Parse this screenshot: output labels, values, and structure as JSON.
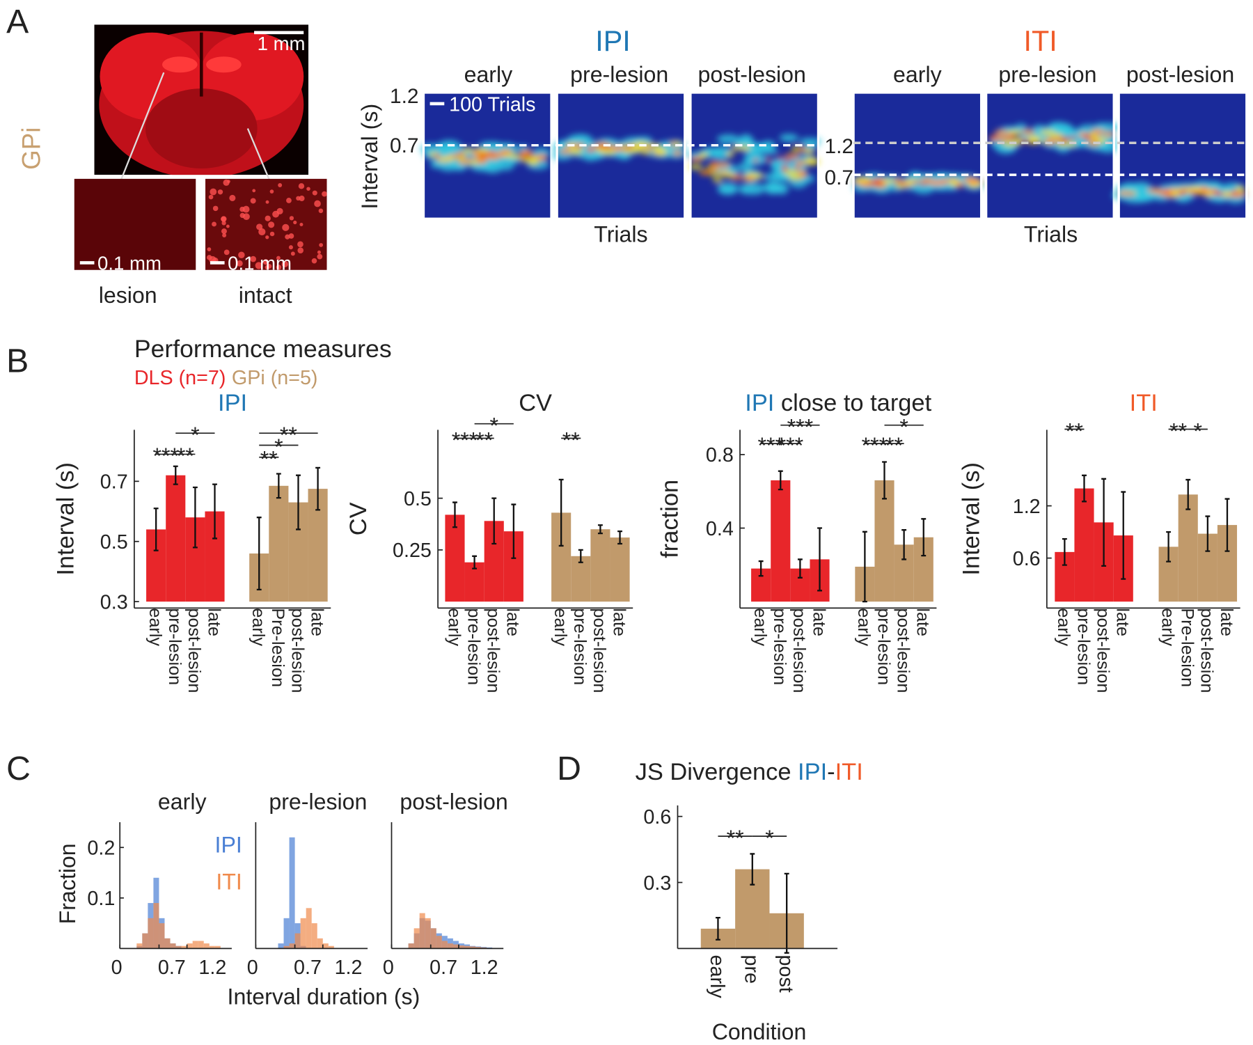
{
  "panel_labels": [
    "A",
    "B",
    "C",
    "D"
  ],
  "panel_a": {
    "region": "GPi",
    "scale_main": "1 mm",
    "scale_inset": [
      "0.1 mm",
      "0.1 mm"
    ],
    "insets": [
      "lesion",
      "intact"
    ],
    "heatmaps": [
      {
        "title": "IPI",
        "color": "#1f77b4",
        "conditions": [
          "early",
          "pre-lesion",
          "post-lesion"
        ],
        "ytick_labels": [
          "1.2",
          "0.7"
        ],
        "ylabel": "Interval (s)",
        "scale_bar": "100 Trials",
        "xlabel": "Trials"
      },
      {
        "title": "ITI",
        "color": "#f05a28",
        "conditions": [
          "early",
          "pre-lesion",
          "post-lesion"
        ],
        "ytick_labels": [
          "1.2",
          "0.7"
        ],
        "xlabel": "Trials"
      }
    ]
  },
  "panel_b": {
    "title": "Performance measures",
    "legend": [
      {
        "name": "DLS (n=7)",
        "color": "#e8262a"
      },
      {
        "name": "GPi (n=5)",
        "color": "#c19a6b"
      }
    ]
  },
  "panel_c": {
    "xlabel": "Interval duration (s)"
  },
  "chart_data": [
    {
      "type": "grouped-bar",
      "title": [
        {
          "text": "IPI",
          "color": "#1f77b4"
        }
      ],
      "ylabel": "Interval (s)",
      "ylim": [
        0.3,
        0.85
      ],
      "yticks": [
        0.3,
        0.5,
        0.7
      ],
      "series": [
        {
          "color": "#e8262a",
          "categories": [
            "early",
            "pre-lesion",
            "post-lesion",
            "late"
          ],
          "values": [
            0.54,
            0.72,
            0.58,
            0.6
          ],
          "errors": [
            0.07,
            0.03,
            0.1,
            0.09
          ]
        },
        {
          "color": "#c19a6b",
          "categories": [
            "early",
            "Pre-lesion",
            "post-lesion",
            "late"
          ],
          "values": [
            0.46,
            0.685,
            0.63,
            0.675
          ],
          "errors": [
            0.12,
            0.04,
            0.09,
            0.07
          ]
        }
      ],
      "annotations": [
        {
          "text": "***",
          "span": [
            0,
            1
          ],
          "y": 0.79
        },
        {
          "text": "**",
          "span": [
            1,
            2
          ],
          "y": 0.79
        },
        {
          "text": "*",
          "span": [
            1,
            3
          ],
          "y": 0.86
        },
        {
          "text": "**",
          "span": [
            4,
            5
          ],
          "y": 0.78
        },
        {
          "text": "*",
          "span": [
            4,
            6
          ],
          "y": 0.82
        },
        {
          "text": "**",
          "span": [
            4,
            7
          ],
          "y": 0.86
        }
      ]
    },
    {
      "type": "grouped-bar",
      "title": [
        {
          "text": "CV",
          "color": "#222222"
        }
      ],
      "ylabel": "CV",
      "ylim": [
        0,
        0.8
      ],
      "yticks": [
        0.25,
        0.5
      ],
      "series": [
        {
          "color": "#e8262a",
          "categories": [
            "early",
            "pre-lesion",
            "post-lesion",
            "late"
          ],
          "values": [
            0.42,
            0.19,
            0.39,
            0.34
          ],
          "errors": [
            0.06,
            0.03,
            0.11,
            0.13
          ]
        },
        {
          "color": "#c19a6b",
          "categories": [
            "early",
            "pre-lesion",
            "post-lesion",
            "late"
          ],
          "values": [
            0.43,
            0.22,
            0.35,
            0.31
          ],
          "errors": [
            0.16,
            0.03,
            0.02,
            0.03
          ]
        }
      ],
      "annotations": [
        {
          "text": "***",
          "span": [
            0,
            1
          ],
          "y": 0.79
        },
        {
          "text": "**",
          "span": [
            1,
            2
          ],
          "y": 0.79
        },
        {
          "text": "*",
          "span": [
            1,
            3
          ],
          "y": 0.86
        },
        {
          "text": "**",
          "span": [
            4,
            5
          ],
          "y": 0.79
        }
      ]
    },
    {
      "type": "grouped-bar",
      "title": [
        {
          "text": "IPI",
          "color": "#1f77b4"
        },
        {
          "text": " close to target",
          "color": "#222222"
        }
      ],
      "ylabel": "fraction",
      "ylim": [
        0,
        0.9
      ],
      "yticks": [
        0.4,
        0.8
      ],
      "series": [
        {
          "color": "#e8262a",
          "categories": [
            "early",
            "pre-lesion",
            "post-lesion",
            "late"
          ],
          "values": [
            0.18,
            0.66,
            0.18,
            0.23
          ],
          "errors": [
            0.04,
            0.05,
            0.05,
            0.17
          ]
        },
        {
          "color": "#c19a6b",
          "categories": [
            "early",
            "pre-lesion",
            "post-lesion",
            "late"
          ],
          "values": [
            0.19,
            0.66,
            0.31,
            0.35
          ],
          "errors": [
            0.19,
            0.1,
            0.08,
            0.1
          ]
        }
      ],
      "annotations": [
        {
          "text": "***",
          "span": [
            0,
            1
          ],
          "y": 0.86
        },
        {
          "text": "***",
          "span": [
            1,
            2
          ],
          "y": 0.86
        },
        {
          "text": "***",
          "span": [
            1,
            3
          ],
          "y": 0.96
        },
        {
          "text": "***",
          "span": [
            4,
            5
          ],
          "y": 0.86
        },
        {
          "text": "**",
          "span": [
            5,
            6
          ],
          "y": 0.86
        },
        {
          "text": "*",
          "span": [
            5,
            7
          ],
          "y": 0.96
        }
      ]
    },
    {
      "type": "grouped-bar",
      "title": [
        {
          "text": "ITI",
          "color": "#f05a28"
        }
      ],
      "ylabel": "Interval (s)",
      "ylim": [
        0.1,
        2.0
      ],
      "yticks": [
        0.6,
        1.2
      ],
      "series": [
        {
          "color": "#e8262a",
          "categories": [
            "early",
            "pre-lesion",
            "post-lesion",
            "late"
          ],
          "values": [
            0.67,
            1.4,
            1.01,
            0.86
          ],
          "errors": [
            0.15,
            0.15,
            0.5,
            0.5
          ]
        },
        {
          "color": "#c19a6b",
          "categories": [
            "early",
            "Pre-lesion",
            "post-lesion",
            "late"
          ],
          "values": [
            0.73,
            1.33,
            0.88,
            0.98
          ],
          "errors": [
            0.17,
            0.17,
            0.2,
            0.3
          ]
        }
      ],
      "annotations": [
        {
          "text": "**",
          "span": [
            0,
            1
          ],
          "y": 2.08
        },
        {
          "text": "**",
          "span": [
            4,
            5
          ],
          "y": 2.08
        },
        {
          "text": "*",
          "span": [
            5,
            6
          ],
          "y": 2.08
        }
      ]
    },
    {
      "type": "histogram",
      "title": "early",
      "bins": [
        0.2,
        0.3,
        0.4,
        0.5,
        0.6,
        0.7,
        0.8,
        0.9,
        1.0,
        1.1,
        1.2,
        1.3,
        1.4,
        1.5,
        1.6,
        1.7,
        1.8,
        1.9,
        2.0
      ],
      "series": [
        {
          "name": "IPI",
          "color": "#4a7fd4",
          "values": [
            0,
            0.005,
            0.03,
            0.09,
            0.14,
            0.06,
            0.02,
            0.01,
            0.005,
            0,
            0,
            0,
            0,
            0,
            0,
            0,
            0,
            0
          ]
        },
        {
          "name": "ITI",
          "color": "#f08a4b",
          "values": [
            0,
            0.01,
            0.03,
            0.06,
            0.09,
            0.05,
            0.02,
            0.01,
            0.005,
            0.005,
            0.01,
            0.015,
            0.015,
            0.01,
            0.005,
            0.005,
            0,
            0
          ]
        }
      ],
      "xlim": [
        0,
        2.0
      ],
      "xticks": [
        0,
        0.7,
        1.2
      ],
      "ylim": [
        0,
        0.25
      ],
      "yticks": [
        0.1,
        0.2
      ],
      "ylabel": "Fraction"
    },
    {
      "type": "histogram",
      "title": "pre-lesion",
      "bins": [
        0.2,
        0.3,
        0.4,
        0.5,
        0.6,
        0.7,
        0.8,
        0.9,
        1.0,
        1.1,
        1.2,
        1.3,
        1.4,
        1.5,
        1.6,
        1.7,
        1.8,
        1.9,
        2.0
      ],
      "series": [
        {
          "color": "#4a7fd4",
          "values": [
            0,
            0,
            0.01,
            0.06,
            0.22,
            0.05,
            0.005,
            0,
            0,
            0,
            0,
            0,
            0,
            0,
            0,
            0,
            0,
            0
          ]
        },
        {
          "color": "#f08a4b",
          "values": [
            0,
            0,
            0,
            0.005,
            0.01,
            0.03,
            0.06,
            0.08,
            0.05,
            0.02,
            0.01,
            0.005,
            0,
            0,
            0,
            0,
            0,
            0
          ]
        }
      ],
      "xlim": [
        0,
        2.0
      ],
      "xticks": [
        0,
        0.7,
        1.2
      ],
      "ylim": [
        0,
        0.25
      ]
    },
    {
      "type": "histogram",
      "title": "post-lesion",
      "bins": [
        0.2,
        0.3,
        0.4,
        0.5,
        0.6,
        0.7,
        0.8,
        0.9,
        1.0,
        1.1,
        1.2,
        1.3,
        1.4,
        1.5,
        1.6,
        1.7,
        1.8,
        1.9,
        2.0
      ],
      "series": [
        {
          "color": "#4a7fd4",
          "values": [
            0,
            0.01,
            0.03,
            0.06,
            0.055,
            0.04,
            0.03,
            0.025,
            0.02,
            0.015,
            0.01,
            0.008,
            0.005,
            0.004,
            0.003,
            0.002,
            0,
            0
          ]
        },
        {
          "color": "#f08a4b",
          "values": [
            0,
            0.01,
            0.04,
            0.07,
            0.06,
            0.04,
            0.025,
            0.015,
            0.01,
            0.008,
            0.006,
            0.005,
            0.004,
            0.003,
            0.002,
            0.001,
            0,
            0
          ]
        }
      ],
      "xlim": [
        0,
        2.0
      ],
      "xticks": [
        0,
        0.7,
        1.2
      ],
      "ylim": [
        0,
        0.25
      ]
    },
    {
      "type": "bar",
      "title": [
        {
          "text": "JS Divergence ",
          "color": "#222222"
        },
        {
          "text": "IPI",
          "color": "#1f77b4"
        },
        {
          "text": "-",
          "color": "#222222"
        },
        {
          "text": "ITI",
          "color": "#f05a28"
        }
      ],
      "categories": [
        "early",
        "pre",
        "post"
      ],
      "values": [
        0.09,
        0.36,
        0.16
      ],
      "errors": [
        0.05,
        0.07,
        0.18
      ],
      "color": "#c19a6b",
      "ylim": [
        0,
        0.65
      ],
      "yticks": [
        0.3,
        0.6
      ],
      "xlabel": "Condition",
      "annotations": [
        {
          "text": "**",
          "span": [
            0,
            1
          ],
          "y": 0.51
        },
        {
          "text": "*",
          "span": [
            1,
            2
          ],
          "y": 0.51
        }
      ]
    }
  ]
}
